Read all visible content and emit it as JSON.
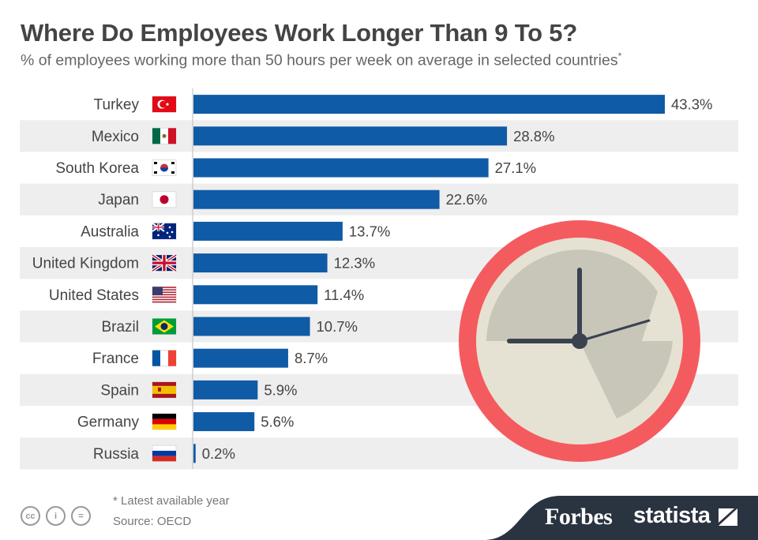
{
  "header": {
    "title": "Where Do Employees Work Longer Than 9 To 5?",
    "subtitle": "% of employees working more than 50 hours per week on average in selected countries",
    "subtitle_mark": "*"
  },
  "chart_data": {
    "type": "bar",
    "orientation": "horizontal",
    "title": "Where Do Employees Work Longer Than 9 To 5?",
    "categories": [
      "Turkey",
      "Mexico",
      "South Korea",
      "Japan",
      "Australia",
      "United Kingdom",
      "United States",
      "Brazil",
      "France",
      "Spain",
      "Germany",
      "Russia"
    ],
    "values": [
      43.3,
      28.8,
      27.1,
      22.6,
      13.7,
      12.3,
      11.4,
      10.7,
      8.7,
      5.9,
      5.6,
      0.2
    ],
    "labels": [
      "43.3%",
      "28.8%",
      "27.1%",
      "22.6%",
      "13.7%",
      "12.3%",
      "11.4%",
      "10.7%",
      "8.7%",
      "5.9%",
      "5.6%",
      "0.2%"
    ],
    "flags": [
      "turkey-flag",
      "mexico-flag",
      "south-korea-flag",
      "japan-flag",
      "australia-flag",
      "united-kingdom-flag",
      "united-states-flag",
      "brazil-flag",
      "france-flag",
      "spain-flag",
      "germany-flag",
      "russia-flag"
    ],
    "xlim": [
      0,
      43.3
    ],
    "xlabel": "",
    "ylabel": "",
    "unit": "%",
    "bar_color": "#0f5ba6",
    "stripe_color": "#eeeeee"
  },
  "illustration": {
    "name": "clock-icon",
    "ring_color": "#f45b5f",
    "face_color": "#c8c6b9",
    "hand_color": "#3a4250"
  },
  "footer": {
    "note": "* Latest available year",
    "source": "Source: OECD",
    "license_icons": [
      "cc",
      "i",
      "="
    ],
    "brand_forbes": "Forbes",
    "brand_statista": "statista"
  },
  "colors": {
    "brand_band": "#2a3440"
  }
}
